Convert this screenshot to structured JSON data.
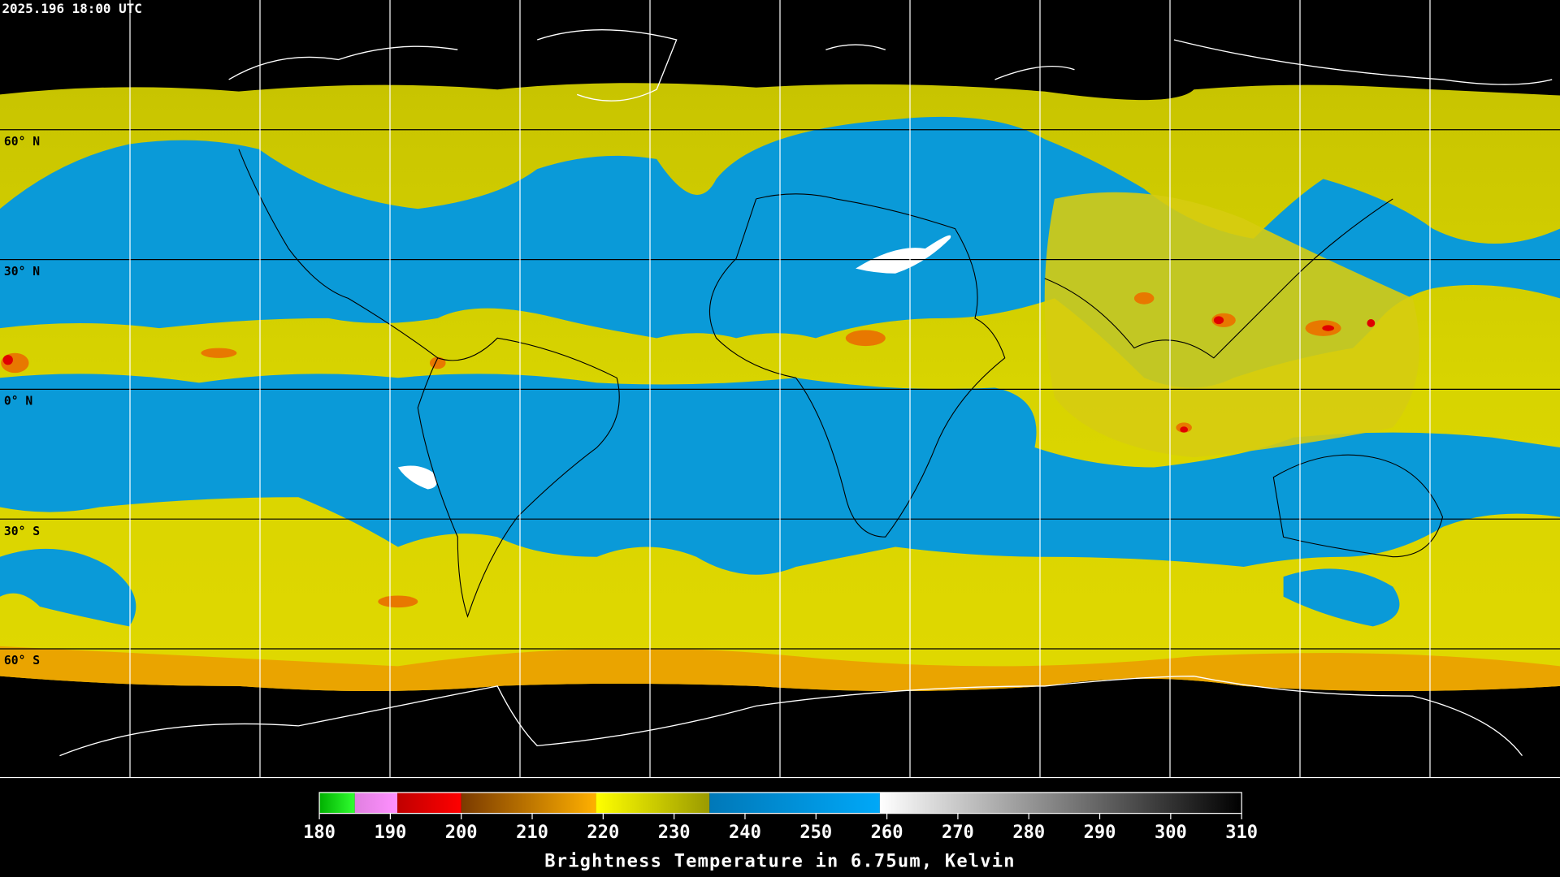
{
  "header": {
    "timestamp": "2025.196 18:00 UTC"
  },
  "map": {
    "latitude_labels": [
      "60° N",
      "30° N",
      "0° N",
      "30° S",
      "60° S"
    ]
  },
  "colorbar": {
    "title": "Brightness Temperature in 6.75um, Kelvin",
    "range": [
      180,
      310
    ],
    "ticks": [
      180,
      190,
      200,
      210,
      220,
      230,
      240,
      250,
      260,
      270,
      280,
      290,
      300,
      310
    ],
    "segments": [
      {
        "from": 180,
        "to": 185,
        "colors": [
          "#00b000",
          "#30ff30"
        ]
      },
      {
        "from": 185,
        "to": 191,
        "colors": [
          "#e080e0",
          "#ff90ff"
        ]
      },
      {
        "from": 191,
        "to": 200,
        "colors": [
          "#c00000",
          "#ff0000"
        ]
      },
      {
        "from": 200,
        "to": 219,
        "colors": [
          "#7a3a00",
          "#ffb000"
        ]
      },
      {
        "from": 219,
        "to": 235,
        "colors": [
          "#ffff00",
          "#9a9a00"
        ]
      },
      {
        "from": 235,
        "to": 259,
        "colors": [
          "#0078b8",
          "#00a8f8"
        ]
      },
      {
        "from": 259,
        "to": 310,
        "colors": [
          "#ffffff",
          "#000000"
        ]
      }
    ]
  }
}
